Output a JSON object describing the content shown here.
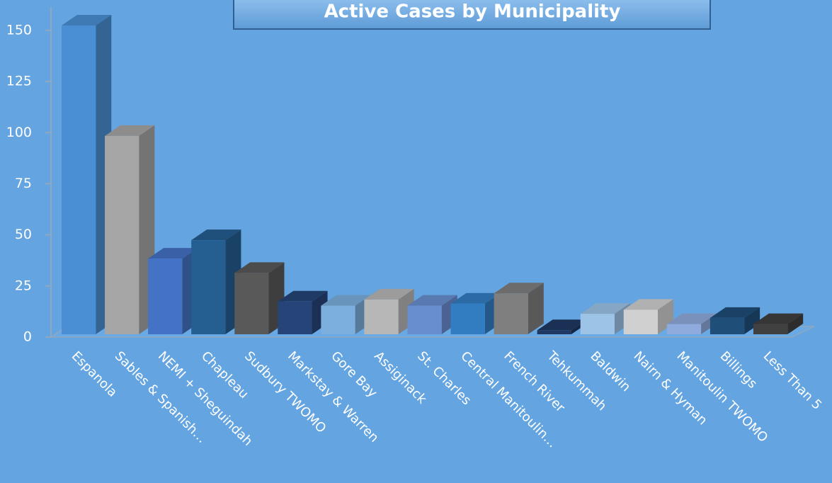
{
  "chart_data": {
    "type": "bar3d",
    "title": "Active Cases by Municipality",
    "categories": [
      "Espanola",
      "Sables & Spanish…",
      "NEMI + Sheguindah",
      "Chapleau",
      "Sudbury TWOMO",
      "Markstay & Warren",
      "Gore Bay",
      "Assiginack",
      "St. Charles",
      "Central Manitoulin…",
      "French River",
      "Tehkummah",
      "Baldwin",
      "Nairn & Hyman",
      "Manitoulin TWOMO",
      "Billings",
      "Less Than 5"
    ],
    "values": [
      151,
      97,
      37,
      46,
      30,
      16,
      14,
      17,
      14,
      15,
      20,
      2,
      10,
      12,
      5,
      8,
      5
    ],
    "colors": [
      "#4a8fd4",
      "#a6a6a6",
      "#4472c4",
      "#255e91",
      "#595959",
      "#264478",
      "#7cafdd",
      "#b7b7b7",
      "#698ed0",
      "#327dc2",
      "#7f7f7f",
      "#203864",
      "#9dc3e6",
      "#d0d0d0",
      "#8faadc",
      "#1f4e79",
      "#404040"
    ],
    "ylim": [
      0,
      160
    ],
    "yticks": [
      0,
      25,
      50,
      75,
      100,
      125,
      150
    ]
  }
}
